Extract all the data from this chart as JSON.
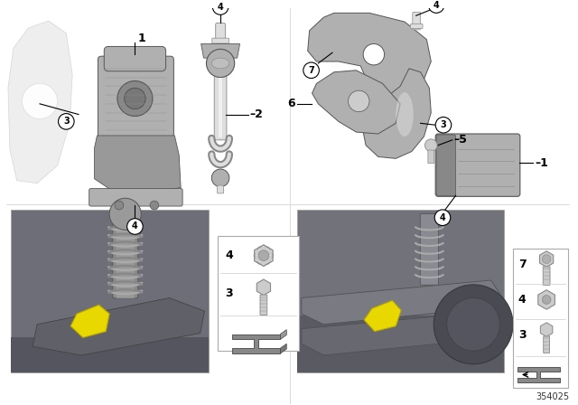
{
  "bg_color": "#ffffff",
  "part_number": "354025",
  "fig_width": 6.4,
  "fig_height": 4.48,
  "divider_color": "#dddddd",
  "gray1": "#b0b0b0",
  "gray2": "#888888",
  "gray3": "#cccccc",
  "gray4": "#999999",
  "dark": "#555555",
  "light": "#dedede",
  "photo_bg_l": "#7a7a82",
  "photo_bg_r": "#858590",
  "yellow": "#e8d800",
  "legend_border": "#aaaaaa",
  "label_nums": [
    "1",
    "2",
    "3",
    "4",
    "5",
    "6",
    "7"
  ],
  "circled": [
    "3",
    "4",
    "7"
  ],
  "part_num_color": "#333333"
}
